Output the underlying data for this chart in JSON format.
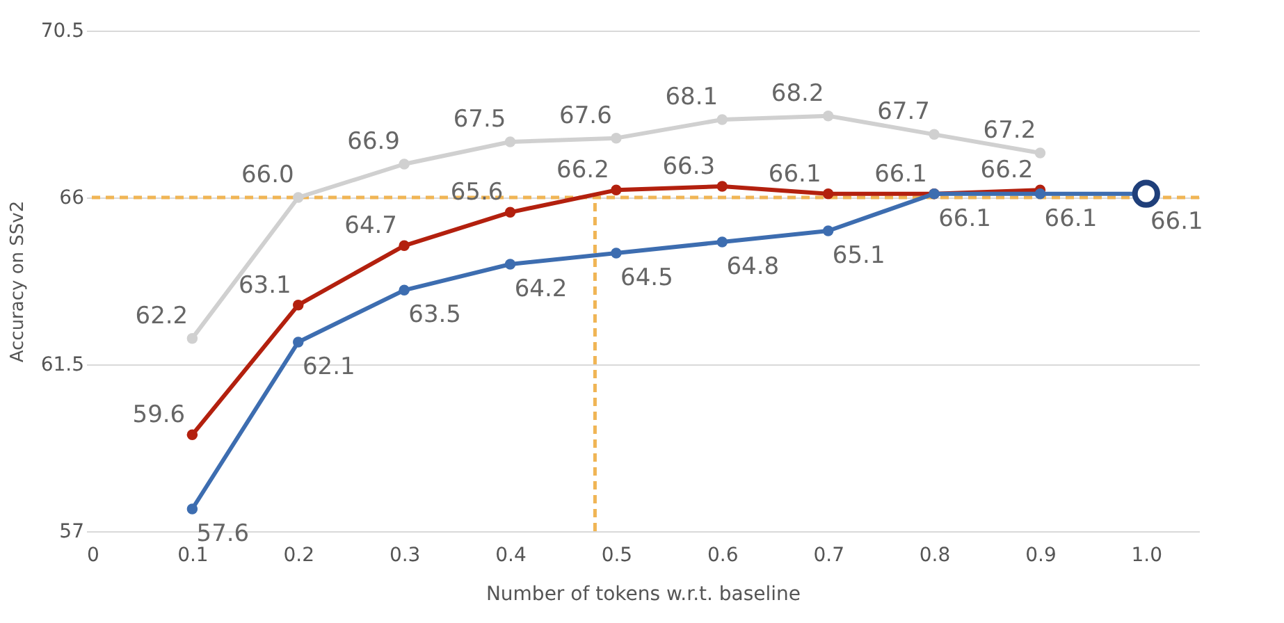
{
  "chart_data": {
    "type": "line",
    "xlabel": "Number of tokens w.r.t. baseline",
    "ylabel": "Accuracy on SSv2",
    "series": [
      {
        "color": "#d0d0d0",
        "x": [
          0.1,
          0.2,
          0.3,
          0.4,
          0.5,
          0.6,
          0.7,
          0.8,
          0.9
        ],
        "values": [
          62.2,
          66.0,
          66.9,
          67.5,
          67.6,
          68.1,
          68.2,
          67.7,
          67.2
        ],
        "value_labels": [
          "62.2",
          "66.0",
          "66.9",
          "67.5",
          "67.6",
          "68.1",
          "68.2",
          "67.7",
          "67.2"
        ]
      },
      {
        "color": "#b3200e",
        "x": [
          0.1,
          0.2,
          0.3,
          0.4,
          0.5,
          0.6,
          0.7,
          0.8,
          0.9
        ],
        "values": [
          59.6,
          63.1,
          64.7,
          65.6,
          66.2,
          66.3,
          66.1,
          66.1,
          66.2
        ],
        "value_labels": [
          "59.6",
          "63.1",
          "64.7",
          "65.6",
          "66.2",
          "66.3",
          "66.1",
          "66.1",
          "66.2"
        ]
      },
      {
        "color": "#3d6db0",
        "x": [
          0.1,
          0.2,
          0.3,
          0.4,
          0.5,
          0.6,
          0.7,
          0.8,
          0.9,
          1.0
        ],
        "values": [
          57.6,
          62.1,
          63.5,
          64.2,
          64.5,
          64.8,
          65.1,
          66.1,
          66.1,
          66.1
        ],
        "value_labels": [
          "57.6",
          "62.1",
          "63.5",
          "64.2",
          "64.5",
          "64.8",
          "65.1",
          "66.1",
          "66.1",
          null
        ]
      },
      {
        "type": "scatter",
        "color": "#1f3f7a",
        "x": [
          1.0
        ],
        "values": [
          66.1
        ],
        "value_labels": [
          "66.1"
        ]
      }
    ],
    "xlim": [
      0,
      1.05
    ],
    "xticks": [
      0,
      0.1,
      0.2,
      0.3,
      0.4,
      0.5,
      0.6,
      0.7,
      0.8,
      0.9,
      {
        "value": 1,
        "label": "1.0"
      }
    ],
    "ylim": [
      57,
      70.5
    ],
    "yticks": [
      57,
      61.5,
      66,
      70.5
    ],
    "grid": "y",
    "marker": "circle",
    "ref_lines": [
      {
        "axis": "y",
        "value": 66,
        "color": "#f0b555",
        "line_style": "dashed"
      },
      {
        "axis": "x",
        "value": 0.48,
        "color": "#f0b555",
        "line_style": "dashed"
      }
    ]
  }
}
